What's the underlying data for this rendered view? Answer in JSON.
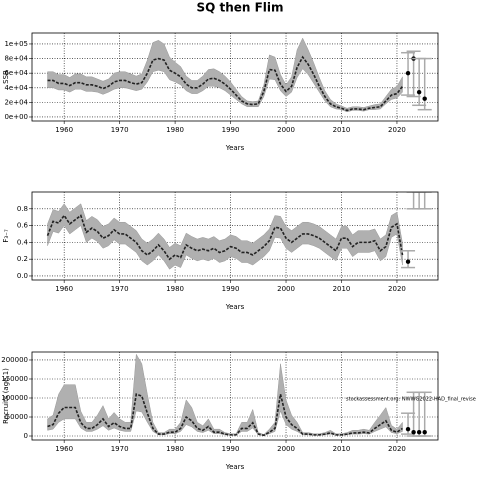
{
  "chart_data": [
    {
      "type": "line",
      "title": "SQ then Flim",
      "ylabel": "SSB",
      "xlabel": "Years",
      "color": "#222222",
      "band_color": "#b0b0b0",
      "xlim": [
        1954.2,
        2027.4
      ],
      "xticks": [
        1960,
        1970,
        1980,
        1990,
        2000,
        2010,
        2020
      ],
      "ylim": [
        -5500,
        115000
      ],
      "yticks": [
        {
          "value": 0,
          "label": "0e+00"
        },
        {
          "value": 20000,
          "label": "2e+04"
        },
        {
          "value": 40000,
          "label": "4e+04"
        },
        {
          "value": 60000,
          "label": "6e+04"
        },
        {
          "value": 80000,
          "label": "8e+04"
        },
        {
          "value": 100000,
          "label": "1e+05"
        }
      ],
      "grid": true,
      "x": [
        1957,
        1958,
        1959,
        1960,
        1961,
        1962,
        1963,
        1964,
        1965,
        1966,
        1967,
        1968,
        1969,
        1970,
        1971,
        1972,
        1973,
        1974,
        1975,
        1976,
        1977,
        1978,
        1979,
        1980,
        1981,
        1982,
        1983,
        1984,
        1985,
        1986,
        1987,
        1988,
        1989,
        1990,
        1991,
        1992,
        1993,
        1994,
        1995,
        1996,
        1997,
        1998,
        1999,
        2000,
        2001,
        2002,
        2003,
        2004,
        2005,
        2006,
        2007,
        2008,
        2009,
        2010,
        2011,
        2012,
        2013,
        2014,
        2015,
        2016,
        2017,
        2018,
        2019,
        2020,
        2021
      ],
      "values": [
        50000,
        50000,
        46000,
        46000,
        43000,
        47000,
        47000,
        44000,
        44000,
        42000,
        39000,
        42000,
        48000,
        50000,
        50000,
        47000,
        45000,
        47000,
        60000,
        78000,
        80000,
        78000,
        64000,
        60000,
        55000,
        45000,
        40000,
        40000,
        45000,
        52000,
        53000,
        50000,
        45000,
        38000,
        30000,
        22000,
        18000,
        17000,
        18000,
        35000,
        65000,
        64000,
        45000,
        35000,
        42000,
        68000,
        82000,
        72000,
        58000,
        42000,
        28000,
        18000,
        14000,
        12000,
        9000,
        11000,
        11000,
        10000,
        12000,
        13000,
        14000,
        22000,
        30000,
        32000,
        42000
      ],
      "low": [
        40000,
        40000,
        37000,
        37000,
        34000,
        38000,
        38000,
        35000,
        35000,
        34000,
        31000,
        34000,
        38000,
        40000,
        40000,
        38000,
        36000,
        38000,
        48000,
        62000,
        64000,
        62000,
        51000,
        48000,
        44000,
        36000,
        32000,
        32000,
        36000,
        42000,
        42000,
        40000,
        36000,
        30000,
        24000,
        18000,
        14000,
        14000,
        14000,
        28000,
        52000,
        51000,
        36000,
        28000,
        34000,
        54000,
        66000,
        58000,
        46000,
        34000,
        22000,
        14000,
        11000,
        10000,
        7000,
        9000,
        9000,
        8000,
        10000,
        10000,
        11000,
        18000,
        24000,
        26000,
        34000
      ],
      "high": [
        62000,
        62000,
        58000,
        58000,
        54000,
        59000,
        59000,
        55000,
        55000,
        52000,
        49000,
        52000,
        60000,
        62000,
        62000,
        59000,
        56000,
        59000,
        78000,
        102000,
        105000,
        100000,
        82000,
        75000,
        69000,
        56000,
        50000,
        50000,
        56000,
        65000,
        66000,
        62000,
        56000,
        48000,
        38000,
        28000,
        22000,
        21000,
        22000,
        44000,
        85000,
        82000,
        58000,
        44000,
        55000,
        92000,
        108000,
        92000,
        74000,
        54000,
        36000,
        24000,
        18000,
        15000,
        12000,
        14000,
        14000,
        13000,
        15000,
        17000,
        18000,
        28000,
        38000,
        42000,
        55000
      ],
      "forecast": {
        "x": [
          2022,
          2023,
          2024,
          2025
        ],
        "values": [
          60000,
          80000,
          34000,
          25000
        ],
        "low": [
          30000,
          28000,
          16000,
          10000
        ],
        "high": [
          88000,
          90000,
          80000,
          80000
        ]
      }
    },
    {
      "type": "line",
      "ylabel": "F₃₋₇",
      "xlabel": "Years",
      "color": "#222222",
      "band_color": "#b0b0b0",
      "xlim": [
        1954.2,
        2027.4
      ],
      "xticks": [
        1960,
        1970,
        1980,
        1990,
        2000,
        2010,
        2020
      ],
      "ylim": [
        -0.048,
        1.0
      ],
      "yticks": [
        {
          "value": 0,
          "label": "0.0"
        },
        0.2,
        0.4,
        0.6,
        0.8
      ],
      "grid": true,
      "x": [
        1957,
        1958,
        1959,
        1960,
        1961,
        1962,
        1963,
        1964,
        1965,
        1966,
        1967,
        1968,
        1969,
        1970,
        1971,
        1972,
        1973,
        1974,
        1975,
        1976,
        1977,
        1978,
        1979,
        1980,
        1981,
        1982,
        1983,
        1984,
        1985,
        1986,
        1987,
        1988,
        1989,
        1990,
        1991,
        1992,
        1993,
        1994,
        1995,
        1996,
        1997,
        1998,
        1999,
        2000,
        2001,
        2002,
        2003,
        2004,
        2005,
        2006,
        2007,
        2008,
        2009,
        2010,
        2011,
        2012,
        2013,
        2014,
        2015,
        2016,
        2017,
        2018,
        2019,
        2020,
        2021
      ],
      "values": [
        0.48,
        0.65,
        0.63,
        0.72,
        0.62,
        0.67,
        0.72,
        0.52,
        0.57,
        0.53,
        0.45,
        0.48,
        0.55,
        0.5,
        0.5,
        0.45,
        0.4,
        0.3,
        0.25,
        0.3,
        0.37,
        0.3,
        0.2,
        0.25,
        0.22,
        0.37,
        0.33,
        0.3,
        0.32,
        0.3,
        0.33,
        0.28,
        0.3,
        0.35,
        0.33,
        0.28,
        0.28,
        0.25,
        0.3,
        0.35,
        0.42,
        0.58,
        0.57,
        0.45,
        0.4,
        0.45,
        0.5,
        0.5,
        0.48,
        0.45,
        0.4,
        0.35,
        0.3,
        0.45,
        0.45,
        0.35,
        0.4,
        0.4,
        0.4,
        0.42,
        0.3,
        0.35,
        0.58,
        0.62,
        0.25
      ],
      "low": [
        0.36,
        0.53,
        0.51,
        0.6,
        0.5,
        0.55,
        0.6,
        0.4,
        0.45,
        0.41,
        0.33,
        0.36,
        0.43,
        0.38,
        0.38,
        0.33,
        0.28,
        0.18,
        0.13,
        0.18,
        0.25,
        0.18,
        0.08,
        0.13,
        0.1,
        0.25,
        0.21,
        0.18,
        0.2,
        0.18,
        0.21,
        0.16,
        0.18,
        0.23,
        0.21,
        0.16,
        0.16,
        0.13,
        0.18,
        0.23,
        0.3,
        0.46,
        0.45,
        0.33,
        0.28,
        0.33,
        0.38,
        0.38,
        0.36,
        0.33,
        0.28,
        0.23,
        0.18,
        0.33,
        0.33,
        0.23,
        0.28,
        0.28,
        0.28,
        0.3,
        0.18,
        0.23,
        0.46,
        0.5,
        0.13
      ],
      "high": [
        0.62,
        0.79,
        0.77,
        0.86,
        0.76,
        0.81,
        0.86,
        0.66,
        0.71,
        0.67,
        0.59,
        0.62,
        0.69,
        0.64,
        0.64,
        0.59,
        0.54,
        0.44,
        0.39,
        0.44,
        0.51,
        0.44,
        0.34,
        0.39,
        0.36,
        0.51,
        0.47,
        0.44,
        0.46,
        0.44,
        0.47,
        0.42,
        0.44,
        0.49,
        0.47,
        0.42,
        0.42,
        0.39,
        0.44,
        0.49,
        0.56,
        0.72,
        0.71,
        0.59,
        0.54,
        0.59,
        0.64,
        0.64,
        0.62,
        0.59,
        0.54,
        0.49,
        0.44,
        0.59,
        0.59,
        0.49,
        0.54,
        0.54,
        0.54,
        0.56,
        0.44,
        0.49,
        0.72,
        0.76,
        0.39
      ],
      "forecast": {
        "x": [
          2022,
          2023,
          2024,
          2025
        ],
        "values": [
          0.17,
          null,
          null,
          null
        ],
        "low": [
          0.1,
          0.8,
          0.8,
          0.8
        ],
        "high": [
          0.3,
          1.0,
          1.0,
          1.0
        ]
      }
    },
    {
      "type": "line",
      "ylabel": "Recruits (age 1)",
      "xlabel": "Years",
      "color": "#222222",
      "band_color": "#b0b0b0",
      "annotation": "stockassessment.org: NWWG2022-HAD_final_revise",
      "xlim": [
        1954.2,
        2027.4
      ],
      "xticks": [
        1960,
        1970,
        1980,
        1990,
        2000,
        2010,
        2020
      ],
      "ylim": [
        -10500,
        221000
      ],
      "yticks": [
        0,
        50000,
        100000,
        150000,
        200000
      ],
      "grid": true,
      "x": [
        1957,
        1958,
        1959,
        1960,
        1961,
        1962,
        1963,
        1964,
        1965,
        1966,
        1967,
        1968,
        1969,
        1970,
        1971,
        1972,
        1973,
        1974,
        1975,
        1976,
        1977,
        1978,
        1979,
        1980,
        1981,
        1982,
        1983,
        1984,
        1985,
        1986,
        1987,
        1988,
        1989,
        1990,
        1991,
        1992,
        1993,
        1994,
        1995,
        1996,
        1997,
        1998,
        1999,
        2000,
        2001,
        2002,
        2003,
        2004,
        2005,
        2006,
        2007,
        2008,
        2009,
        2010,
        2011,
        2012,
        2013,
        2014,
        2015,
        2016,
        2017,
        2018,
        2019,
        2020,
        2021
      ],
      "values": [
        25000,
        30000,
        60000,
        75000,
        75000,
        75000,
        35000,
        20000,
        20000,
        30000,
        45000,
        25000,
        35000,
        25000,
        20000,
        20000,
        110000,
        105000,
        60000,
        20000,
        5000,
        5000,
        10000,
        10000,
        20000,
        50000,
        40000,
        20000,
        15000,
        25000,
        10000,
        10000,
        5000,
        3000,
        3000,
        20000,
        20000,
        35000,
        5000,
        2000,
        10000,
        20000,
        110000,
        50000,
        30000,
        20000,
        5000,
        5000,
        3000,
        3000,
        5000,
        8000,
        3000,
        3000,
        5000,
        8000,
        8000,
        10000,
        8000,
        20000,
        30000,
        40000,
        15000,
        10000,
        20000
      ],
      "low": [
        15000,
        18000,
        36000,
        45000,
        45000,
        45000,
        21000,
        12000,
        12000,
        18000,
        27000,
        15000,
        21000,
        15000,
        12000,
        12000,
        66000,
        63000,
        36000,
        12000,
        3000,
        3000,
        6000,
        6000,
        12000,
        30000,
        24000,
        12000,
        9000,
        15000,
        6000,
        6000,
        3000,
        2000,
        2000,
        12000,
        12000,
        21000,
        3000,
        1000,
        6000,
        12000,
        66000,
        30000,
        18000,
        12000,
        3000,
        3000,
        2000,
        2000,
        3000,
        5000,
        2000,
        2000,
        3000,
        5000,
        5000,
        6000,
        5000,
        12000,
        18000,
        24000,
        9000,
        6000,
        12000
      ],
      "high": [
        45000,
        55000,
        110000,
        135000,
        135000,
        135000,
        65000,
        36000,
        36000,
        55000,
        80000,
        45000,
        62000,
        45000,
        36000,
        36000,
        215000,
        190000,
        110000,
        36000,
        9000,
        9000,
        18000,
        18000,
        36000,
        95000,
        75000,
        36000,
        27000,
        45000,
        18000,
        18000,
        9000,
        6000,
        6000,
        36000,
        36000,
        70000,
        9000,
        4000,
        18000,
        36000,
        190000,
        95000,
        55000,
        36000,
        9000,
        9000,
        6000,
        6000,
        9000,
        15000,
        6000,
        6000,
        9000,
        15000,
        15000,
        18000,
        15000,
        36000,
        55000,
        75000,
        28000,
        18000,
        36000
      ],
      "forecast": {
        "x": [
          2022,
          2023,
          2024,
          2025
        ],
        "values": [
          18000,
          10000,
          10000,
          10000
        ],
        "low": [
          5000,
          0,
          0,
          0
        ],
        "high": [
          60000,
          115000,
          115000,
          115000
        ]
      }
    }
  ]
}
